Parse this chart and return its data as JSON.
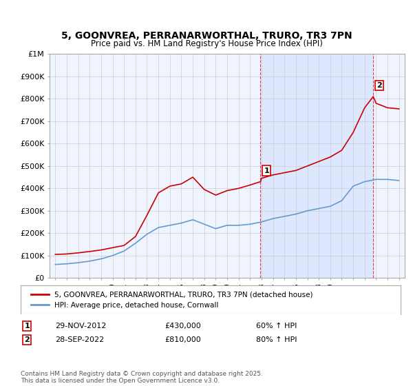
{
  "title": "5, GOONVREA, PERRANARWORTHAL, TRURO, TR3 7PN",
  "subtitle": "Price paid vs. HM Land Registry's House Price Index (HPI)",
  "legend_line1": "5, GOONVREA, PERRANARWORTHAL, TRURO, TR3 7PN (detached house)",
  "legend_line2": "HPI: Average price, detached house, Cornwall",
  "annotation1_label": "1",
  "annotation1_date": "29-NOV-2012",
  "annotation1_price": "£430,000",
  "annotation1_hpi": "60% ↑ HPI",
  "annotation1_year": 2012.91,
  "annotation1_value": 430000,
  "annotation2_label": "2",
  "annotation2_date": "28-SEP-2022",
  "annotation2_price": "£810,000",
  "annotation2_hpi": "80% ↑ HPI",
  "annotation2_year": 2022.75,
  "annotation2_value": 810000,
  "ylim": [
    0,
    1000000
  ],
  "xlim": [
    1994.5,
    2025.5
  ],
  "yticks": [
    0,
    100000,
    200000,
    300000,
    400000,
    500000,
    600000,
    700000,
    800000,
    900000,
    1000000
  ],
  "ytick_labels": [
    "£0",
    "£100K",
    "£200K",
    "£300K",
    "£400K",
    "£500K",
    "£600K",
    "£700K",
    "£800K",
    "£900K",
    "£1M"
  ],
  "red_color": "#cc0000",
  "blue_color": "#6699cc",
  "bg_color": "#f0f4ff",
  "shaded_color": "#dde8ff",
  "grid_color": "#cccccc",
  "footer": "Contains HM Land Registry data © Crown copyright and database right 2025.\nThis data is licensed under the Open Government Licence v3.0.",
  "house_years": [
    1995,
    1996,
    1997,
    1998,
    1999,
    2000,
    2001,
    2002,
    2003,
    2004,
    2005,
    2006,
    2007,
    2008,
    2009,
    2010,
    2011,
    2012,
    2012.91,
    2013,
    2014,
    2015,
    2016,
    2017,
    2018,
    2019,
    2020,
    2021,
    2022,
    2022.75,
    2023,
    2024,
    2025
  ],
  "house_values": [
    105000,
    107000,
    112000,
    118000,
    125000,
    135000,
    145000,
    185000,
    280000,
    380000,
    410000,
    420000,
    450000,
    395000,
    370000,
    390000,
    400000,
    415000,
    430000,
    445000,
    460000,
    470000,
    480000,
    500000,
    520000,
    540000,
    570000,
    650000,
    760000,
    810000,
    780000,
    760000,
    755000
  ],
  "hpi_years": [
    1995,
    1996,
    1997,
    1998,
    1999,
    2000,
    2001,
    2002,
    2003,
    2004,
    2005,
    2006,
    2007,
    2008,
    2009,
    2010,
    2011,
    2012,
    2013,
    2014,
    2015,
    2016,
    2017,
    2018,
    2019,
    2020,
    2021,
    2022,
    2023,
    2024,
    2025
  ],
  "hpi_values": [
    60000,
    63000,
    68000,
    75000,
    85000,
    100000,
    120000,
    155000,
    195000,
    225000,
    235000,
    245000,
    260000,
    240000,
    220000,
    235000,
    235000,
    240000,
    250000,
    265000,
    275000,
    285000,
    300000,
    310000,
    320000,
    345000,
    410000,
    430000,
    440000,
    440000,
    435000
  ]
}
